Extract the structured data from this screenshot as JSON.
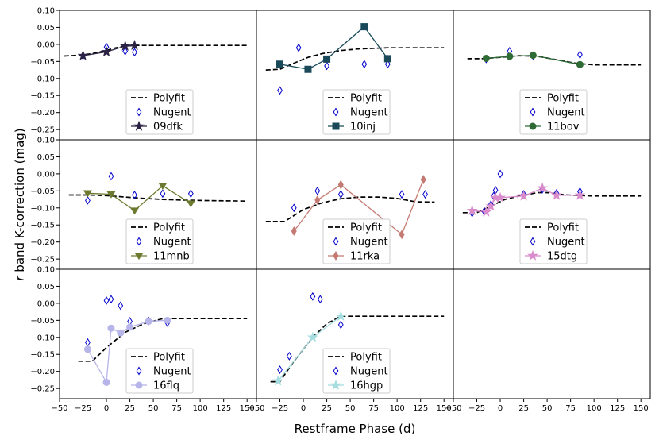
{
  "chart_data": {
    "type": "line",
    "xlabel": "Restframe Phase (d)",
    "ylabel_prefix": "r",
    "ylabel_rest": " band K-correction (mag)",
    "xlim": [
      -50,
      160
    ],
    "ylim": [
      -0.28,
      0.1
    ],
    "xticks": [
      -50,
      -25,
      0,
      25,
      50,
      75,
      100,
      125,
      150
    ],
    "yticks": [
      0.1,
      0.05,
      0.0,
      -0.05,
      -0.1,
      -0.15,
      -0.2,
      -0.25
    ],
    "legend_placement": "lower-center",
    "panels": [
      {
        "name": "09dfk",
        "color": "#2b2244",
        "marker": "star",
        "polyfit": [
          [
            -45,
            -0.034
          ],
          [
            -30,
            -0.032
          ],
          [
            -15,
            -0.027
          ],
          [
            0,
            -0.018
          ],
          [
            10,
            -0.01
          ],
          [
            20,
            -0.005
          ],
          [
            30,
            -0.003
          ],
          [
            60,
            -0.003
          ],
          [
            100,
            -0.003
          ],
          [
            150,
            -0.003
          ]
        ],
        "nugent": [
          [
            -25,
            -0.033
          ],
          [
            0,
            -0.008
          ],
          [
            20,
            -0.02
          ],
          [
            30,
            -0.023
          ]
        ],
        "series": [
          [
            -25,
            -0.033
          ],
          [
            0,
            -0.022
          ],
          [
            20,
            -0.005
          ],
          [
            30,
            -0.003
          ]
        ]
      },
      {
        "name": "10inj",
        "color": "#1a4a5a",
        "marker": "square",
        "polyfit": [
          [
            -40,
            -0.075
          ],
          [
            -25,
            -0.073
          ],
          [
            -10,
            -0.055
          ],
          [
            5,
            -0.038
          ],
          [
            20,
            -0.027
          ],
          [
            40,
            -0.018
          ],
          [
            60,
            -0.013
          ],
          [
            90,
            -0.01
          ],
          [
            150,
            -0.01
          ]
        ],
        "nugent": [
          [
            -25,
            -0.135
          ],
          [
            -5,
            -0.01
          ],
          [
            25,
            -0.063
          ],
          [
            65,
            -0.058
          ],
          [
            90,
            -0.058
          ]
        ],
        "series": [
          [
            -25,
            -0.058
          ],
          [
            5,
            -0.073
          ],
          [
            25,
            -0.043
          ],
          [
            65,
            0.052
          ],
          [
            90,
            -0.042
          ]
        ]
      },
      {
        "name": "11bov",
        "color": "#2e6b35",
        "marker": "circle",
        "polyfit": [
          [
            -35,
            -0.042
          ],
          [
            -20,
            -0.042
          ],
          [
            0,
            -0.038
          ],
          [
            20,
            -0.033
          ],
          [
            40,
            -0.035
          ],
          [
            60,
            -0.045
          ],
          [
            80,
            -0.055
          ],
          [
            100,
            -0.06
          ],
          [
            150,
            -0.06
          ]
        ],
        "nugent": [
          [
            -15,
            -0.043
          ],
          [
            10,
            -0.02
          ],
          [
            35,
            -0.033
          ],
          [
            85,
            -0.03
          ]
        ],
        "series": [
          [
            -15,
            -0.041
          ],
          [
            10,
            -0.035
          ],
          [
            35,
            -0.032
          ],
          [
            85,
            -0.059
          ]
        ]
      },
      {
        "name": "11mnb",
        "color": "#6b7a2e",
        "marker": "triangle_down",
        "polyfit": [
          [
            -40,
            -0.062
          ],
          [
            -20,
            -0.062
          ],
          [
            0,
            -0.064
          ],
          [
            20,
            -0.068
          ],
          [
            40,
            -0.072
          ],
          [
            60,
            -0.075
          ],
          [
            80,
            -0.077
          ],
          [
            100,
            -0.078
          ],
          [
            150,
            -0.08
          ]
        ],
        "nugent": [
          [
            -20,
            -0.078
          ],
          [
            5,
            -0.007
          ],
          [
            30,
            -0.062
          ],
          [
            60,
            -0.058
          ],
          [
            90,
            -0.058
          ]
        ],
        "series": [
          [
            -20,
            -0.057
          ],
          [
            5,
            -0.06
          ],
          [
            30,
            -0.108
          ],
          [
            60,
            -0.035
          ],
          [
            90,
            -0.087
          ]
        ]
      },
      {
        "name": "11rka",
        "color": "#c47a72",
        "marker": "diamond",
        "polyfit": [
          [
            -40,
            -0.14
          ],
          [
            -20,
            -0.14
          ],
          [
            0,
            -0.105
          ],
          [
            20,
            -0.085
          ],
          [
            40,
            -0.073
          ],
          [
            60,
            -0.068
          ],
          [
            80,
            -0.068
          ],
          [
            100,
            -0.072
          ],
          [
            120,
            -0.082
          ],
          [
            140,
            -0.083
          ]
        ],
        "nugent": [
          [
            -10,
            -0.1
          ],
          [
            15,
            -0.05
          ],
          [
            40,
            -0.06
          ],
          [
            105,
            -0.06
          ],
          [
            130,
            -0.06
          ]
        ],
        "series": [
          [
            -10,
            -0.168
          ],
          [
            15,
            -0.077
          ],
          [
            40,
            -0.032
          ],
          [
            105,
            -0.178
          ],
          [
            128,
            -0.017
          ]
        ]
      },
      {
        "name": "15dtg",
        "color": "#d98ccc",
        "marker": "star",
        "polyfit": [
          [
            -40,
            -0.114
          ],
          [
            -25,
            -0.114
          ],
          [
            -10,
            -0.095
          ],
          [
            5,
            -0.075
          ],
          [
            20,
            -0.065
          ],
          [
            40,
            -0.055
          ],
          [
            50,
            -0.055
          ],
          [
            70,
            -0.062
          ],
          [
            100,
            -0.065
          ],
          [
            150,
            -0.065
          ]
        ],
        "nugent": [
          [
            -30,
            -0.115
          ],
          [
            -17,
            -0.11
          ],
          [
            -10,
            -0.09
          ],
          [
            -7,
            -0.065
          ],
          [
            -5,
            -0.048
          ],
          [
            0,
            0.0
          ],
          [
            25,
            -0.06
          ],
          [
            45,
            -0.045
          ],
          [
            60,
            -0.057
          ],
          [
            85,
            -0.052
          ]
        ],
        "series": [
          [
            -30,
            -0.108
          ],
          [
            -15,
            -0.112
          ],
          [
            -10,
            -0.095
          ],
          [
            -5,
            -0.07
          ],
          [
            0,
            -0.07
          ],
          [
            25,
            -0.065
          ],
          [
            45,
            -0.042
          ],
          [
            60,
            -0.063
          ],
          [
            85,
            -0.063
          ]
        ]
      },
      {
        "name": "16flq",
        "color": "#b6b4e8",
        "marker": "circle",
        "polyfit": [
          [
            -30,
            -0.17
          ],
          [
            -15,
            -0.17
          ],
          [
            0,
            -0.13
          ],
          [
            20,
            -0.085
          ],
          [
            40,
            -0.06
          ],
          [
            60,
            -0.045
          ],
          [
            80,
            -0.045
          ],
          [
            100,
            -0.045
          ],
          [
            150,
            -0.045
          ]
        ],
        "nugent": [
          [
            -20,
            -0.115
          ],
          [
            0,
            0.008
          ],
          [
            5,
            0.012
          ],
          [
            15,
            -0.007
          ],
          [
            25,
            -0.053
          ],
          [
            45,
            -0.052
          ],
          [
            65,
            -0.057
          ]
        ],
        "series": [
          [
            -20,
            -0.135
          ],
          [
            0,
            -0.232
          ],
          [
            5,
            -0.073
          ],
          [
            15,
            -0.087
          ],
          [
            25,
            -0.07
          ],
          [
            45,
            -0.053
          ],
          [
            65,
            -0.05
          ]
        ]
      },
      {
        "name": "16hgp",
        "color": "#a6dde0",
        "marker": "star",
        "polyfit": [
          [
            -35,
            -0.23
          ],
          [
            -25,
            -0.23
          ],
          [
            -10,
            -0.17
          ],
          [
            10,
            -0.1
          ],
          [
            25,
            -0.06
          ],
          [
            40,
            -0.038
          ],
          [
            60,
            -0.038
          ],
          [
            100,
            -0.038
          ],
          [
            150,
            -0.038
          ]
        ],
        "nugent": [
          [
            -25,
            -0.195
          ],
          [
            -15,
            -0.155
          ],
          [
            10,
            0.02
          ],
          [
            18,
            0.012
          ],
          [
            40,
            -0.063
          ]
        ],
        "series": [
          [
            -27,
            -0.228
          ],
          [
            10,
            -0.1
          ],
          [
            40,
            -0.038
          ]
        ]
      }
    ],
    "legend_polyfit": "Polyfit",
    "legend_nugent": "Nugent"
  }
}
